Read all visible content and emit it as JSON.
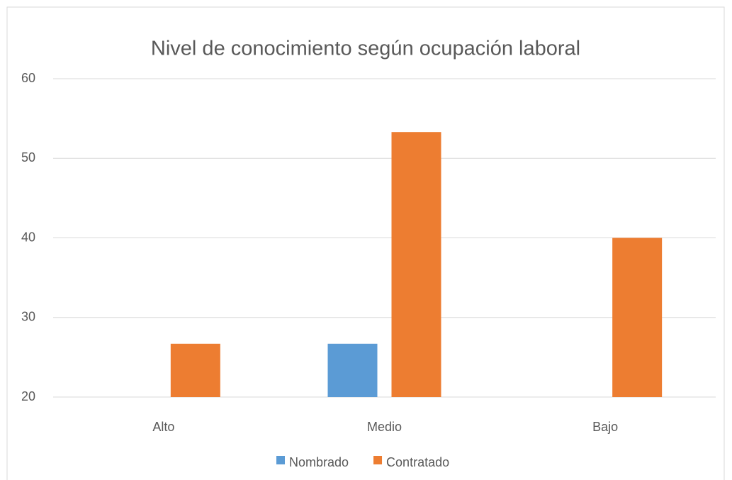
{
  "chart_data": {
    "type": "bar",
    "title": "Nivel de conocimiento según ocupación laboral",
    "categories": [
      "Alto",
      "Medio",
      "Bajo"
    ],
    "series": [
      {
        "name": "Nombrado",
        "color": "#5b9bd5",
        "values": [
          null,
          26.7,
          null
        ]
      },
      {
        "name": "Contratado",
        "color": "#ed7d31",
        "values": [
          26.7,
          53.3,
          40
        ]
      }
    ],
    "ylim": [
      20,
      60
    ],
    "yticks": [
      20,
      30,
      40,
      50,
      60
    ],
    "grid": true,
    "legend": "bottom"
  }
}
